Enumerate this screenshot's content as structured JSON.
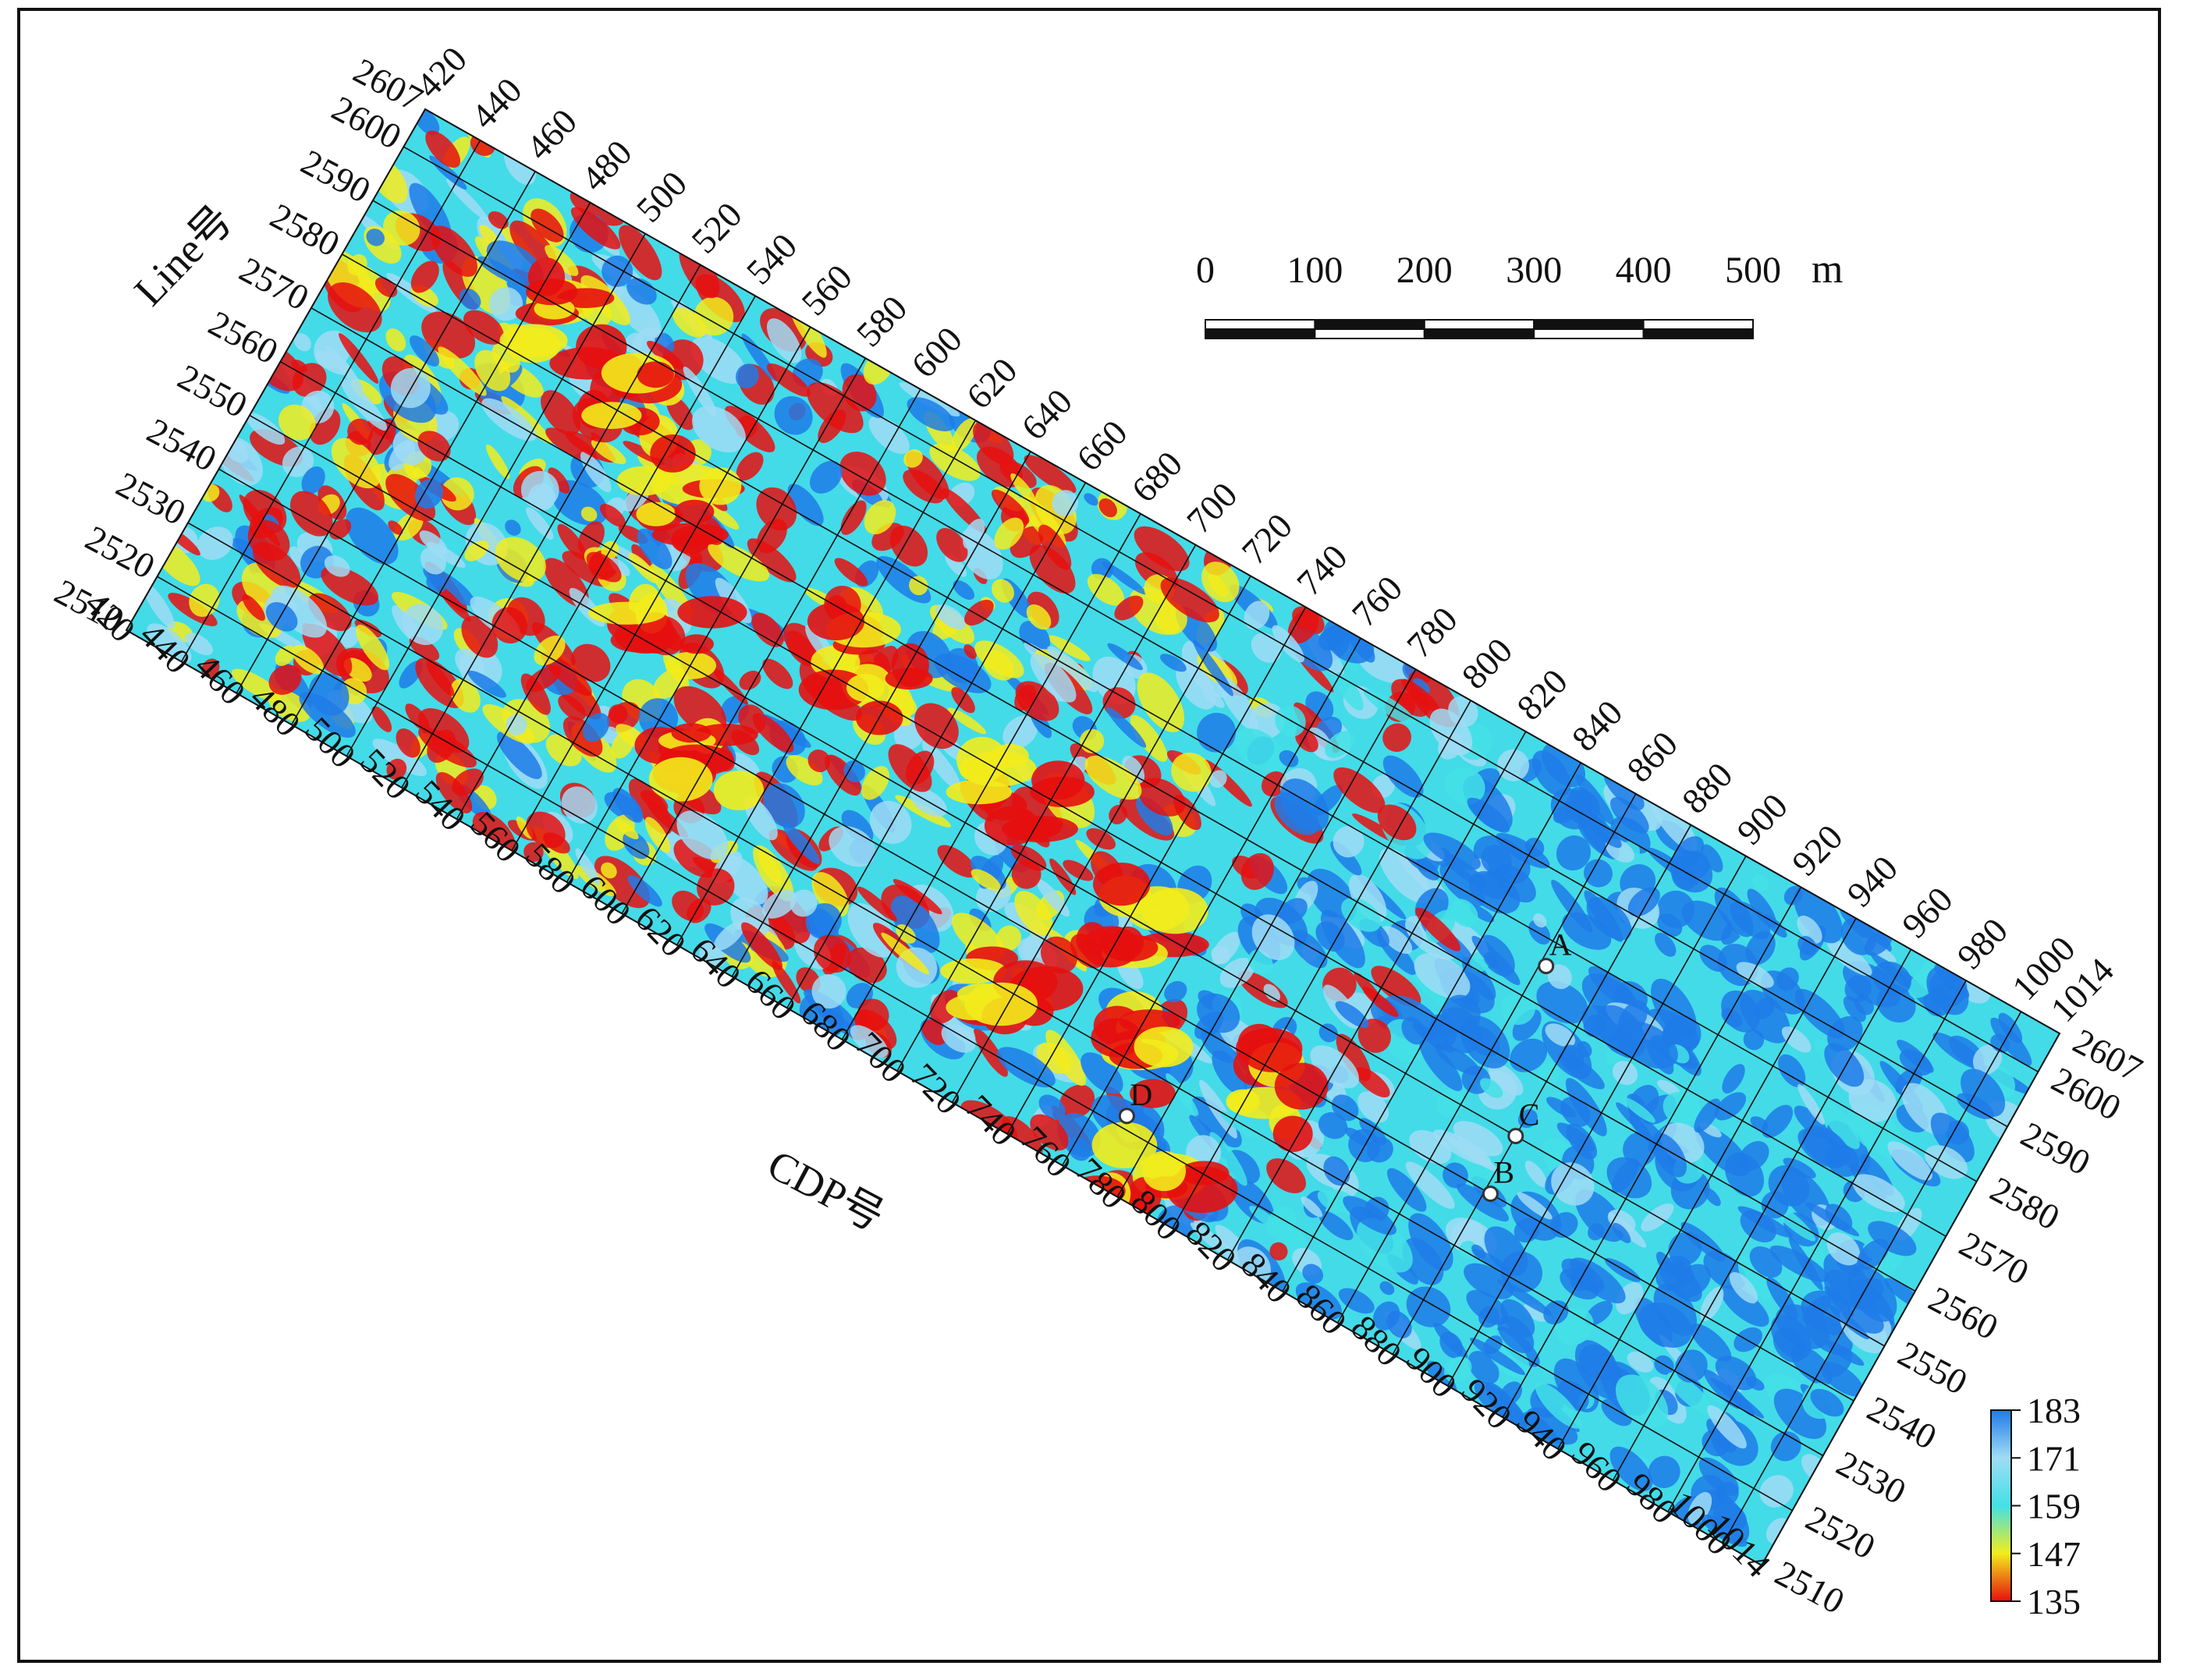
{
  "axes": {
    "line_title": "Line号",
    "cdp_title": "CDP号",
    "cdp_ticks": [
      "420",
      "440",
      "460",
      "480",
      "500",
      "520",
      "540",
      "560",
      "580",
      "600",
      "620",
      "640",
      "660",
      "680",
      "700",
      "720",
      "740",
      "760",
      "780",
      "800",
      "820",
      "840",
      "860",
      "880",
      "900",
      "920",
      "940",
      "960",
      "980",
      "1000",
      "1014"
    ],
    "line_ticks": [
      "2607",
      "2600",
      "2590",
      "2580",
      "2570",
      "2560",
      "2550",
      "2540",
      "2530",
      "2520",
      "2510"
    ],
    "cdp_range": [
      420,
      1014
    ],
    "line_range": [
      2510,
      2607
    ]
  },
  "scale_bar": {
    "labels": [
      "0",
      "100",
      "200",
      "300",
      "400",
      "500"
    ],
    "unit": "m"
  },
  "colorbar": {
    "ticks": [
      "183",
      "171",
      "159",
      "147",
      "135"
    ],
    "range": [
      135,
      183
    ],
    "colors": [
      "#1f7be8",
      "#9fdcf5",
      "#43e0e6",
      "#f2ec1c",
      "#e60f0f"
    ]
  },
  "wells": [
    {
      "name": "A",
      "cdp": 862,
      "line": 2576
    },
    {
      "name": "C",
      "cdp": 880,
      "line": 2550
    },
    {
      "name": "B",
      "cdp": 882,
      "line": 2540
    },
    {
      "name": "D",
      "cdp": 770,
      "line": 2522
    }
  ],
  "colors": {
    "low_value_red": "#e60f0f",
    "high_value_blue": "#1f7be8",
    "grid_line": "#111111"
  }
}
